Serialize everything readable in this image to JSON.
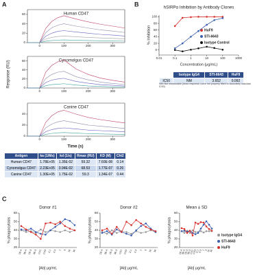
{
  "panel_labels": [
    "A",
    "B",
    "C"
  ],
  "panel_a": {
    "y_label": "Response (RU)",
    "x_label": "Time (s)"
  },
  "chart_data": [
    {
      "type": "line",
      "title": "Human CD47",
      "x": [
        -50,
        0,
        25,
        50,
        75,
        100,
        150,
        200,
        250,
        300,
        350
      ],
      "xlim": [
        -50,
        350
      ],
      "xticks": [
        0,
        100,
        200,
        300
      ],
      "ylim": [
        0,
        70
      ],
      "yticks": [
        0,
        20,
        40,
        60
      ],
      "series": [
        {
          "color": "#c04060",
          "values": [
            0,
            0,
            30,
            45,
            53,
            57,
            50,
            44,
            39,
            35,
            31
          ]
        },
        {
          "color": "#8a8aa8",
          "values": [
            0,
            0,
            21,
            31.5,
            37,
            40,
            35,
            31,
            27,
            24.5,
            21.5
          ]
        },
        {
          "color": "#6060c0",
          "values": [
            0,
            0,
            13.5,
            20,
            24,
            25.5,
            22.5,
            20,
            17.5,
            16,
            14
          ]
        },
        {
          "color": "#a0a0a0",
          "values": [
            0,
            0,
            7.5,
            11,
            13,
            14,
            12.5,
            11,
            10,
            9,
            8
          ]
        },
        {
          "color": "#40a0a0",
          "values": [
            0,
            0,
            3,
            4.5,
            5.3,
            5.7,
            5,
            4.4,
            3.9,
            3.5,
            3.1
          ]
        }
      ]
    },
    {
      "type": "line",
      "title": "Cynomolgus CD47",
      "x": [
        -50,
        0,
        25,
        50,
        75,
        100,
        150,
        200,
        250,
        300,
        350
      ],
      "xlim": [
        -50,
        350
      ],
      "xticks": [
        0,
        100,
        200,
        300
      ],
      "ylim": [
        0,
        70
      ],
      "yticks": [
        0,
        20,
        40,
        60
      ],
      "series": [
        {
          "color": "#c04060",
          "values": [
            0,
            0,
            35,
            50,
            58,
            62,
            42,
            30,
            22,
            17,
            13
          ]
        },
        {
          "color": "#8a8aa8",
          "values": [
            0,
            0,
            21,
            30,
            35,
            37,
            25,
            18,
            13,
            10,
            8
          ]
        },
        {
          "color": "#6060c0",
          "values": [
            0,
            0,
            12,
            17.5,
            20,
            21.5,
            14.5,
            10.5,
            7.5,
            6,
            4.5
          ]
        },
        {
          "color": "#40a0a0",
          "values": [
            0,
            0,
            5,
            7.5,
            8.5,
            9.5,
            6.5,
            4.5,
            3.5,
            2.5,
            2
          ]
        }
      ]
    },
    {
      "type": "line",
      "title": "Canine CD47",
      "x": [
        -50,
        0,
        25,
        50,
        75,
        100,
        150,
        200,
        250,
        300,
        350
      ],
      "xlim": [
        -50,
        350
      ],
      "xticks": [
        0,
        100,
        200,
        300
      ],
      "ylim": [
        0,
        60
      ],
      "yticks": [
        0,
        20,
        40
      ],
      "series": [
        {
          "color": "#c04060",
          "values": [
            0,
            0,
            25,
            37,
            44,
            47,
            40,
            34,
            30,
            27,
            24
          ]
        },
        {
          "color": "#8a8aa8",
          "values": [
            0,
            0,
            15,
            22,
            26,
            28,
            24,
            20,
            18,
            16,
            14
          ]
        },
        {
          "color": "#6060c0",
          "values": [
            0,
            0,
            8,
            12,
            14,
            15,
            13,
            11,
            10,
            9,
            8
          ]
        },
        {
          "color": "#40a0a0",
          "values": [
            0,
            0,
            3,
            5,
            6,
            6.5,
            5.5,
            4.5,
            4,
            3.5,
            3
          ]
        }
      ]
    },
    {
      "type": "line",
      "title": "hSIRPα Inhibition by Antibody Clones",
      "x_label": "Concentration (μg/mL)",
      "y_label": "% Inhibition",
      "log_x": true,
      "markers": true,
      "x": [
        0.1,
        0.3,
        1,
        3,
        10,
        30,
        100
      ],
      "xlim": [
        0.01,
        1000
      ],
      "xticks": [
        0.01,
        0.1,
        1,
        10,
        100,
        1000
      ],
      "ylim": [
        -15,
        105
      ],
      "yticks": [
        0,
        20,
        40,
        60,
        80,
        100
      ],
      "series": [
        {
          "name": "HuF9",
          "color": "#d9302b",
          "values": [
            72,
            97,
            99,
            100,
            100,
            100,
            100
          ]
        },
        {
          "name": "STI-6643",
          "color": "#3a5fb0",
          "values": [
            5,
            20,
            40,
            57,
            76,
            90,
            96
          ]
        },
        {
          "name": "Isotype Control",
          "color": "#111111",
          "values": [
            0,
            -4,
            1,
            5,
            10,
            6,
            1
          ]
        }
      ]
    },
    {
      "type": "line",
      "title": "Donor #1",
      "x_label": "[Ab] μg/mL",
      "y_label": "% phagocytosis",
      "markers": true,
      "categories": [
        "1E-4",
        "3E-4",
        "1E-3",
        "3E-3",
        "0.01",
        "0.03",
        "0.1",
        "0.3",
        "1",
        "3",
        "10",
        "30"
      ],
      "ylim": [
        20,
        60
      ],
      "yticks": [
        20,
        30,
        40,
        50,
        60
      ],
      "series": [
        {
          "color": "#999999",
          "values": [
            40,
            38,
            39,
            37,
            41,
            38,
            40,
            39,
            38,
            40,
            38,
            40
          ]
        },
        {
          "color": "#3a5fb0",
          "values": [
            41,
            40,
            42,
            38,
            36,
            35,
            40,
            44,
            48,
            53,
            51,
            46
          ]
        },
        {
          "color": "#d9302b",
          "values": [
            45,
            41,
            38,
            35,
            30,
            48,
            49,
            47,
            50,
            45,
            42,
            40
          ]
        }
      ]
    },
    {
      "type": "line",
      "title": "Donor #2",
      "x_label": "[Ab] μg/mL",
      "y_label": "% phagocytosis",
      "markers": true,
      "categories": [
        "1E-4",
        "3E-4",
        "1E-3",
        "3E-3",
        "0.01",
        "0.03",
        "0.1",
        "0.3",
        "1",
        "3",
        "10",
        "30"
      ],
      "ylim": [
        20,
        60
      ],
      "yticks": [
        20,
        30,
        40,
        50,
        60
      ],
      "series": [
        {
          "color": "#999999",
          "values": [
            38,
            36,
            40,
            37,
            39,
            38,
            36,
            39,
            37,
            38,
            40,
            38
          ]
        },
        {
          "color": "#3a5fb0",
          "values": [
            37,
            39,
            35,
            41,
            38,
            36,
            34,
            40,
            45,
            48,
            42,
            38
          ]
        },
        {
          "color": "#d9302b",
          "values": [
            40,
            42,
            36,
            44,
            38,
            50,
            46,
            52,
            48,
            44,
            41,
            39
          ]
        }
      ]
    },
    {
      "type": "line",
      "title": "Mean ± SD",
      "x_label": "[Ab] μg/mL",
      "y_label": "% phagocytosis",
      "markers": true,
      "categories": [
        "1E-4",
        "3E-4",
        "1E-3",
        "3E-3",
        "0.01",
        "0.03",
        "0.1",
        "0.3",
        "1",
        "3",
        "10",
        "30"
      ],
      "ylim": [
        20,
        60
      ],
      "yticks": [
        20,
        30,
        40,
        50,
        60
      ],
      "series": [
        {
          "name": "Isotype IgG4",
          "color": "#999999",
          "values": [
            39,
            37,
            39.5,
            37,
            40,
            38,
            38,
            39,
            37.5,
            39,
            39,
            39
          ]
        },
        {
          "name": "STI-6643",
          "color": "#3a5fb0",
          "values": [
            39,
            39.5,
            38.5,
            39.5,
            37,
            35.5,
            37,
            42,
            46.5,
            50.5,
            46.5,
            42
          ]
        },
        {
          "name": "HuF9",
          "color": "#d9302b",
          "values": [
            42.5,
            41.5,
            37,
            39.5,
            34,
            49,
            47.5,
            49.5,
            49,
            44.5,
            41.5,
            39.5
          ]
        }
      ]
    }
  ],
  "tables": {
    "kinetics": {
      "header": [
        "Antigen",
        "ka (1/Ms)",
        "kd (1/s)",
        "Rmax (RU)",
        "KD (M)",
        "Chi2"
      ],
      "rows": [
        [
          "Human CD47",
          "1.78E+05",
          "1.35E-02",
          "59.32",
          "7.60E-08",
          "0.14"
        ],
        [
          "Cynomolgus CD47",
          "2.23E+05",
          "3.94E-02",
          "68.53",
          "1.77E-07",
          "0.26"
        ],
        [
          "Canine CD47",
          "1.30E+05",
          "1.75E-02",
          "59.3",
          "1.34E-07",
          "0.44"
        ]
      ]
    },
    "ic50": {
      "header": [
        "Isotype IgG4",
        "STI-6643",
        "HuF9"
      ],
      "rows": [
        {
          "label": "IC50",
          "cells": [
            "NM",
            "3.652",
            "0.092"
          ]
        }
      ],
      "footnote": "NM=Not measurable (dose-response curve not properly fitted to accurately calculate IC50)"
    }
  }
}
